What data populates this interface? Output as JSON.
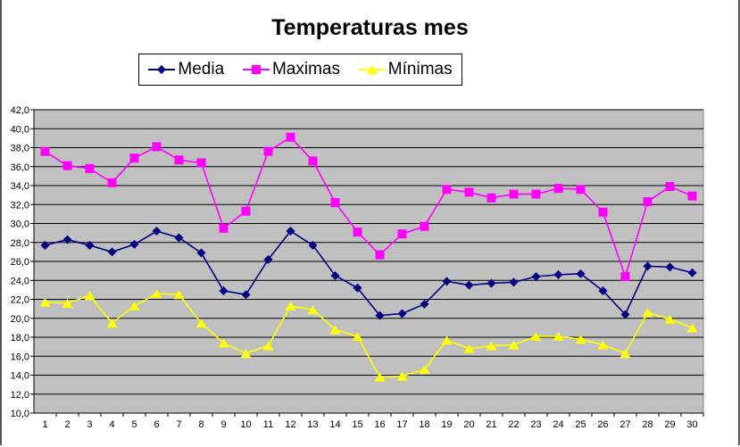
{
  "chart_data": {
    "type": "line",
    "title": "Temperaturas mes",
    "xlabel": "",
    "ylabel": "",
    "categories": [
      "1",
      "2",
      "3",
      "4",
      "5",
      "6",
      "7",
      "8",
      "9",
      "10",
      "11",
      "12",
      "13",
      "14",
      "15",
      "16",
      "17",
      "18",
      "19",
      "20",
      "21",
      "22",
      "23",
      "24",
      "25",
      "26",
      "27",
      "28",
      "29",
      "30"
    ],
    "ylim": [
      10,
      42
    ],
    "ytick_step": 2,
    "ytick_labels": [
      "10,0",
      "12,0",
      "14,0",
      "16,0",
      "18,0",
      "20,0",
      "22,0",
      "24,0",
      "26,0",
      "28,0",
      "30,0",
      "32,0",
      "34,0",
      "36,0",
      "38,0",
      "40,0",
      "42,0"
    ],
    "grid": true,
    "legend_position": "top-center",
    "plot_background": "#C0C0C0",
    "series": [
      {
        "name": "Media",
        "color": "#000080",
        "marker": "diamond",
        "values": [
          27.7,
          28.3,
          27.7,
          27.0,
          27.8,
          29.2,
          28.5,
          26.9,
          22.9,
          22.5,
          26.2,
          29.2,
          27.7,
          24.5,
          23.2,
          20.3,
          20.5,
          21.5,
          23.9,
          23.5,
          23.7,
          23.8,
          24.4,
          24.6,
          24.7,
          22.9,
          20.4,
          25.5,
          25.4,
          24.8
        ]
      },
      {
        "name": "Maximas",
        "color": "#FF00FF",
        "marker": "square",
        "values": [
          37.6,
          36.1,
          35.8,
          34.3,
          36.9,
          38.1,
          36.7,
          36.4,
          29.5,
          31.3,
          37.6,
          39.1,
          36.6,
          32.2,
          29.1,
          26.7,
          28.9,
          29.7,
          33.6,
          33.3,
          32.7,
          33.1,
          33.1,
          33.7,
          33.6,
          31.2,
          24.4,
          32.3,
          33.9,
          32.9
        ]
      },
      {
        "name": "Mínimas",
        "color": "#FFFF00",
        "marker": "triangle",
        "values": [
          21.7,
          21.6,
          22.4,
          19.5,
          21.3,
          22.6,
          22.5,
          19.5,
          17.4,
          16.3,
          17.1,
          21.3,
          20.9,
          18.8,
          18.1,
          13.8,
          13.9,
          14.6,
          17.7,
          16.8,
          17.1,
          17.2,
          18.1,
          18.1,
          17.8,
          17.2,
          16.3,
          20.6,
          19.9,
          19.0
        ]
      }
    ]
  }
}
